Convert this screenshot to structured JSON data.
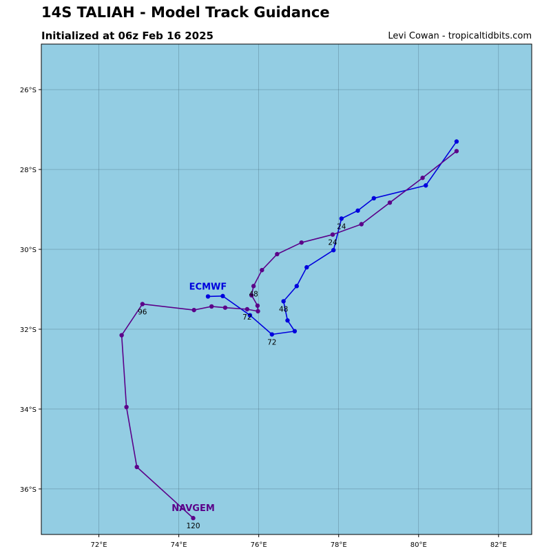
{
  "header": {
    "title": "14S TALIAH - Model Track Guidance",
    "subtitle": "Initialized at 06z Feb 16 2025",
    "credit": "Levi Cowan - tropicaltidbits.com"
  },
  "map": {
    "ocean_color": "#93cde3",
    "grid_color": "#3a5a6a",
    "lon_range": [
      70.56,
      82.83
    ],
    "lat_range": [
      -37.14,
      -24.86
    ],
    "lon_ticks": [
      {
        "v": 72,
        "label": "72°E"
      },
      {
        "v": 74,
        "label": "74°E"
      },
      {
        "v": 76,
        "label": "76°E"
      },
      {
        "v": 78,
        "label": "78°E"
      },
      {
        "v": 80,
        "label": "80°E"
      },
      {
        "v": 82,
        "label": "82°E"
      }
    ],
    "lat_ticks": [
      {
        "v": -26,
        "label": "26°S"
      },
      {
        "v": -28,
        "label": "28°S"
      },
      {
        "v": -30,
        "label": "30°S"
      },
      {
        "v": -32,
        "label": "32°S"
      },
      {
        "v": -34,
        "label": "34°S"
      },
      {
        "v": -36,
        "label": "36°S"
      }
    ]
  },
  "tracks": [
    {
      "name": "ECMWF",
      "color": "#0000dd",
      "points": [
        [
          80.95,
          -27.3
        ],
        [
          80.18,
          -28.4
        ],
        [
          78.88,
          -28.72
        ],
        [
          78.48,
          -29.03
        ],
        [
          78.07,
          -29.23
        ],
        [
          77.87,
          -30.02
        ],
        [
          77.2,
          -30.45
        ],
        [
          76.95,
          -30.92
        ],
        [
          76.62,
          -31.3
        ],
        [
          76.72,
          -31.78
        ],
        [
          76.9,
          -32.05
        ],
        [
          76.33,
          -32.13
        ],
        [
          75.78,
          -31.65
        ],
        [
          75.1,
          -31.17
        ],
        [
          74.73,
          -31.18
        ]
      ],
      "hour_labels": [
        {
          "text": "24",
          "lon": 78.07,
          "lat": -29.23
        },
        {
          "text": "48",
          "lon": 76.62,
          "lat": -31.3
        },
        {
          "text": "72",
          "lon": 76.33,
          "lat": -32.13
        }
      ],
      "name_pos": {
        "lon": 74.73,
        "lat": -31.18
      }
    },
    {
      "name": "NAVGEM",
      "color": "#5b0089",
      "points": [
        [
          80.95,
          -27.54
        ],
        [
          80.1,
          -28.21
        ],
        [
          79.28,
          -28.83
        ],
        [
          78.57,
          -29.37
        ],
        [
          77.85,
          -29.63
        ],
        [
          77.07,
          -29.83
        ],
        [
          76.46,
          -30.12
        ],
        [
          76.08,
          -30.52
        ],
        [
          75.87,
          -30.92
        ],
        [
          75.82,
          -31.15
        ],
        [
          75.97,
          -31.41
        ],
        [
          75.98,
          -31.55
        ],
        [
          75.71,
          -31.5
        ],
        [
          75.16,
          -31.46
        ],
        [
          74.82,
          -31.43
        ],
        [
          74.38,
          -31.52
        ],
        [
          73.09,
          -31.37
        ],
        [
          72.57,
          -32.15
        ],
        [
          72.69,
          -33.95
        ],
        [
          72.95,
          -35.45
        ],
        [
          74.36,
          -36.73
        ]
      ],
      "hour_labels": [
        {
          "text": "24",
          "lon": 77.85,
          "lat": -29.63
        },
        {
          "text": "48",
          "lon": 75.87,
          "lat": -30.92
        },
        {
          "text": "72",
          "lon": 75.71,
          "lat": -31.5
        },
        {
          "text": "96",
          "lon": 73.09,
          "lat": -31.37
        },
        {
          "text": "120",
          "lon": 74.36,
          "lat": -36.73
        }
      ],
      "name_pos": {
        "lon": 74.36,
        "lat": -36.73
      }
    }
  ]
}
